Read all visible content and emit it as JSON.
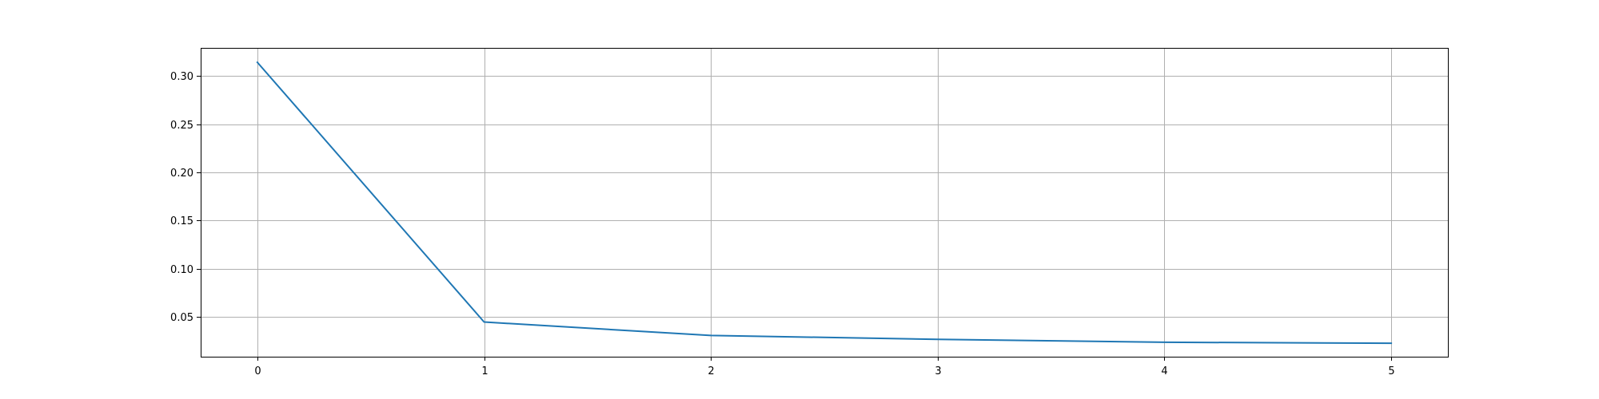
{
  "chart_data": {
    "type": "line",
    "title": "",
    "xlabel": "",
    "ylabel": "",
    "xlim": [
      -0.25,
      5.25
    ],
    "ylim": [
      0.009,
      0.329
    ],
    "grid": true,
    "x_ticks": [
      {
        "value": 0,
        "label": "0"
      },
      {
        "value": 1,
        "label": "1"
      },
      {
        "value": 2,
        "label": "2"
      },
      {
        "value": 3,
        "label": "3"
      },
      {
        "value": 4,
        "label": "4"
      },
      {
        "value": 5,
        "label": "5"
      }
    ],
    "y_ticks": [
      {
        "value": 0.05,
        "label": "0.05"
      },
      {
        "value": 0.1,
        "label": "0.10"
      },
      {
        "value": 0.15,
        "label": "0.15"
      },
      {
        "value": 0.2,
        "label": "0.20"
      },
      {
        "value": 0.25,
        "label": "0.25"
      },
      {
        "value": 0.3,
        "label": "0.30"
      }
    ],
    "series": [
      {
        "color": "#1f77b4",
        "x": [
          0,
          1,
          2,
          3,
          4,
          5
        ],
        "y": [
          0.314,
          0.045,
          0.031,
          0.027,
          0.024,
          0.023
        ]
      }
    ]
  }
}
